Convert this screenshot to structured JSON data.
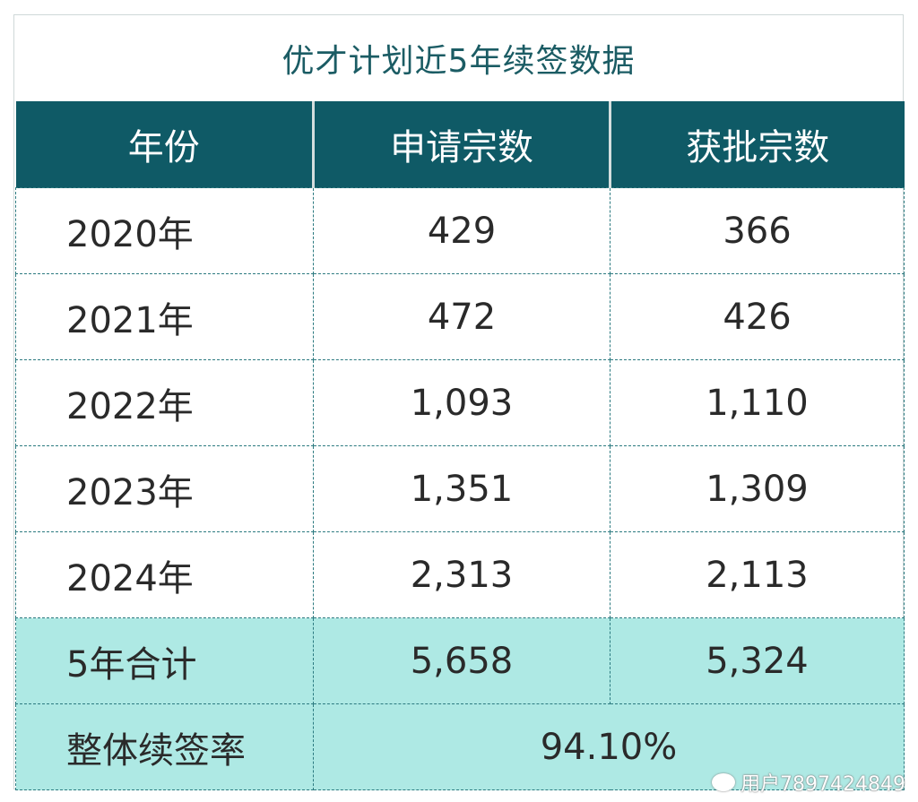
{
  "title": "优才计划近5年续签数据",
  "table": {
    "headers": [
      "年份",
      "申请宗数",
      "获批宗数"
    ],
    "rows": [
      {
        "year": "2020年",
        "applied": "429",
        "approved": "366"
      },
      {
        "year": "2021年",
        "applied": "472",
        "approved": "426"
      },
      {
        "year": "2022年",
        "applied": "1,093",
        "approved": "1,110"
      },
      {
        "year": "2023年",
        "applied": "1,351",
        "approved": "1,309"
      },
      {
        "year": "2024年",
        "applied": "2,313",
        "approved": "2,113"
      }
    ],
    "total": {
      "label": "5年合计",
      "applied": "5,658",
      "approved": "5,324"
    },
    "rate": {
      "label": "整体续签率",
      "value": "94.10%"
    }
  },
  "watermark": {
    "icon": "weibo-icon",
    "text": "用户7897424849"
  },
  "colors": {
    "header_bg": "#0f5a66",
    "title_text": "#1b5c64",
    "highlight_bg": "#aee9e4"
  }
}
